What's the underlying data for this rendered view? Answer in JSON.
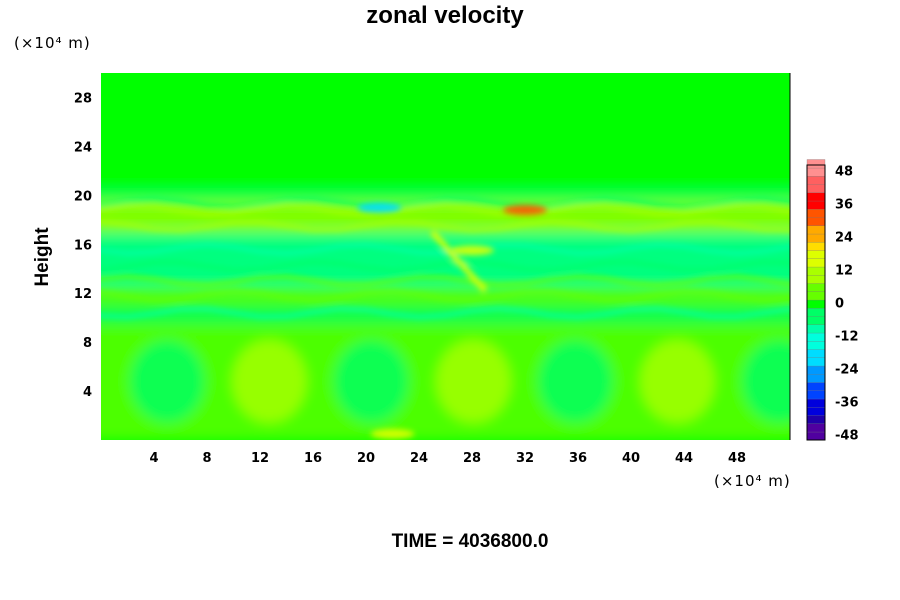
{
  "chart_data": {
    "type": "heatmap",
    "title": "zonal velocity",
    "xlabel": "",
    "ylabel": "Height",
    "x_unit": "(×10⁴ m)",
    "y_unit": "(×10⁴ m)",
    "footer": "TIME = 4036800.0",
    "xlim": [
      0,
      52
    ],
    "ylim": [
      0,
      30
    ],
    "x_ticks": [
      "4",
      "8",
      "12",
      "16",
      "20",
      "24",
      "28",
      "32",
      "36",
      "40",
      "44",
      "48"
    ],
    "y_ticks": [
      "4",
      "8",
      "12",
      "16",
      "20",
      "24",
      "28"
    ],
    "colorbar": {
      "range": [
        -50,
        50
      ],
      "interval": 3,
      "tick_labels": [
        "48",
        "36",
        "24",
        "12",
        "0",
        "-12",
        "-24",
        "-36",
        "-48"
      ]
    },
    "colors": {
      "zero": "#00ff00",
      "positive": [
        "#66ff00",
        "#aaff00",
        "#ddff00",
        "#ffdd00",
        "#ffaa00",
        "#ff5500",
        "#ff0000",
        "#ff6060",
        "#ff9090"
      ],
      "negative": [
        "#00ff66",
        "#00ffaa",
        "#00ffdd",
        "#00ddff",
        "#0099ff",
        "#0044ff",
        "#0000dd",
        "#2000aa",
        "#5000a0"
      ]
    },
    "bands": [
      {
        "y": [
          0,
          9.5
        ],
        "desc": "lower-layer oscillation cells",
        "value_range": [
          -3,
          9
        ]
      },
      {
        "y": [
          9.5,
          11
        ],
        "value": -6
      },
      {
        "y": [
          11,
          12.5
        ],
        "value": 4
      },
      {
        "y": [
          12.5,
          15
        ],
        "value": -8
      },
      {
        "y": [
          15,
          17
        ],
        "value": -12
      },
      {
        "y": [
          17,
          19.5
        ],
        "value": 8
      },
      {
        "y": [
          19.5,
          20.5
        ],
        "value": -4
      },
      {
        "y": [
          20.5,
          30
        ],
        "value": 0
      }
    ],
    "extremes": [
      {
        "x": 32,
        "y": 18.8,
        "value": 30
      },
      {
        "x": 22,
        "y": 0.5,
        "value": 14
      },
      {
        "x": 21,
        "y": 19,
        "value": -20
      },
      {
        "x": 28,
        "y": 15.5,
        "value": 15
      }
    ]
  }
}
